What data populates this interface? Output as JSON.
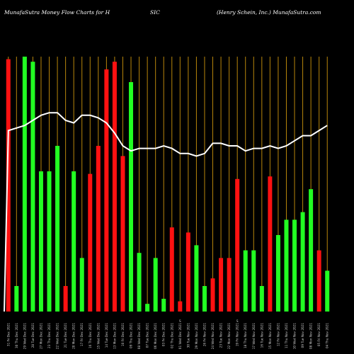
{
  "header": {
    "left": "MunafaSutra  Money Flow  Charts for H",
    "mid": "SIC",
    "right": "(Henry Schein, Inc.) MunafaSutra.com"
  },
  "colors": {
    "background": "#000000",
    "up": "#22ff22",
    "down": "#ff1111",
    "grid": "#b8860b",
    "line": "#ffffff"
  },
  "chart_data": {
    "type": "bar",
    "title": "MunafaSutra  Money Flow  Charts for HSIC",
    "subtitle": "(Henry Schein, Inc.) MunafaSutra.com",
    "xlabel": "",
    "ylabel": "",
    "ylim": [
      0,
      100
    ],
    "grid": true,
    "mid_marks": [
      "",
      "",
      "",
      "",
      "",
      "",
      "",
      "",
      "",
      "",
      "",
      "",
      "",
      "",
      "",
      "",
      "",
      "",
      "",
      "",
      "",
      "S",
      "",
      "",
      "",
      "",
      "",
      "",
      "S",
      "",
      "",
      "",
      "",
      "",
      "",
      "",
      "",
      "",
      "",
      "",
      "",
      "",
      "",
      "",
      "",
      "",
      "",
      "",
      "",
      "",
      "",
      "",
      "",
      "",
      ""
    ],
    "bars": [
      {
        "date": "31 Fri Dec 2021",
        "value": 99,
        "dir": "down"
      },
      {
        "date": "30 Thu Dec 2021",
        "value": 10,
        "dir": "up"
      },
      {
        "date": "29 Wed Dec 2021",
        "value": 100,
        "dir": "up"
      },
      {
        "date": "28 Tue Dec 2021",
        "value": 98,
        "dir": "up"
      },
      {
        "date": "27 Mon Dec 2021",
        "value": 55,
        "dir": "up"
      },
      {
        "date": "23 Thu Dec 2021",
        "value": 55,
        "dir": "up"
      },
      {
        "date": "22 Wed Dec 2021",
        "value": 65,
        "dir": "up"
      },
      {
        "date": "21 Tue Dec 2021",
        "value": 10,
        "dir": "down"
      },
      {
        "date": "20 Mon Dec 2021",
        "value": 55,
        "dir": "up"
      },
      {
        "date": "17 Fri Dec 2021",
        "value": 21,
        "dir": "up"
      },
      {
        "date": "16 Thu Dec 2021",
        "value": 54,
        "dir": "down"
      },
      {
        "date": "15 Wed Dec 2021",
        "value": 65,
        "dir": "down"
      },
      {
        "date": "14 Tue Dec 2021",
        "value": 95,
        "dir": "down"
      },
      {
        "date": "13 Mon Dec 2021",
        "value": 98,
        "dir": "down"
      },
      {
        "date": "10 Fri Dec 2021",
        "value": 61,
        "dir": "down"
      },
      {
        "date": "09 Thu Dec 2021",
        "value": 90,
        "dir": "up"
      },
      {
        "date": "08 Wed Dec 2021",
        "value": 23,
        "dir": "up"
      },
      {
        "date": "07 Tue Dec 2021",
        "value": 3,
        "dir": "up"
      },
      {
        "date": "06 Mon Dec 2021",
        "value": 21,
        "dir": "up"
      },
      {
        "date": "03 Fri Dec 2021",
        "value": 5,
        "dir": "up"
      },
      {
        "date": "02 Thu Dec 2021",
        "value": 33,
        "dir": "down"
      },
      {
        "date": "01 Wed Dec 2021",
        "value": 4,
        "dir": "down"
      },
      {
        "date": "30 Tue Nov 2021",
        "value": 31,
        "dir": "down"
      },
      {
        "date": "29 Mon Nov 2021",
        "value": 26,
        "dir": "up"
      },
      {
        "date": "26 Fri Nov 2021",
        "value": 10,
        "dir": "up"
      },
      {
        "date": "24 Wed Nov 2021",
        "value": 13,
        "dir": "down"
      },
      {
        "date": "23 Tue Nov 2021",
        "value": 21,
        "dir": "down"
      },
      {
        "date": "22 Mon Nov 2021",
        "value": 21,
        "dir": "down"
      },
      {
        "date": "19 Fri Nov 2021",
        "value": 52,
        "dir": "down"
      },
      {
        "date": "18 Thu Nov 2021",
        "value": 24,
        "dir": "up"
      },
      {
        "date": "17 Wed Nov 2021",
        "value": 24,
        "dir": "up"
      },
      {
        "date": "16 Tue Nov 2021",
        "value": 10,
        "dir": "up"
      },
      {
        "date": "15 Mon Nov 2021",
        "value": 53,
        "dir": "down"
      },
      {
        "date": "12 Fri Nov 2021",
        "value": 30,
        "dir": "up"
      },
      {
        "date": "11 Thu Nov 2021",
        "value": 36,
        "dir": "up"
      },
      {
        "date": "10 Wed Nov 2021",
        "value": 36,
        "dir": "up"
      },
      {
        "date": "09 Tue Nov 2021",
        "value": 39,
        "dir": "up"
      },
      {
        "date": "08 Mon Nov 2021",
        "value": 48,
        "dir": "up"
      },
      {
        "date": "05 Fri Nov 2021",
        "value": 24,
        "dir": "down"
      },
      {
        "date": "04 Thu Nov 2021",
        "value": 16,
        "dir": "up"
      }
    ],
    "line_values": [
      71,
      72,
      73,
      75,
      77,
      78,
      78,
      75,
      74,
      77,
      77,
      76,
      74,
      70,
      65,
      63,
      64,
      64,
      64,
      65,
      64,
      62,
      62,
      61,
      62,
      66,
      66,
      65,
      65,
      63,
      64,
      64,
      65,
      64,
      65,
      67,
      69,
      69,
      71,
      73
    ]
  }
}
